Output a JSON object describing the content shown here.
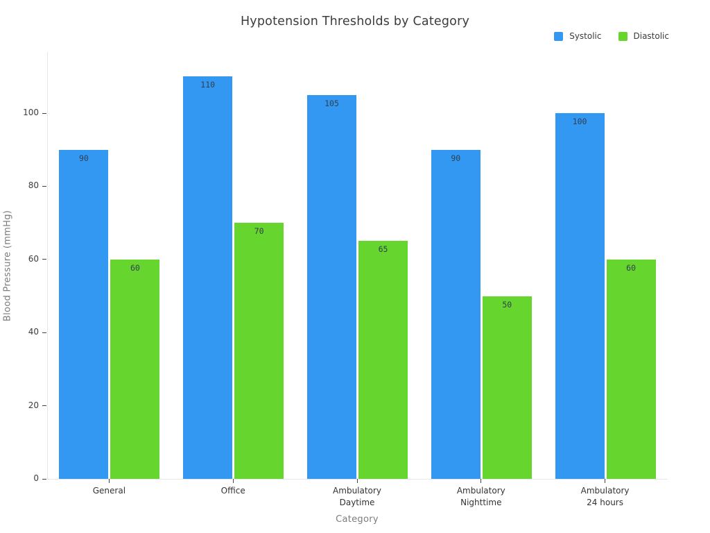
{
  "chart_data": {
    "type": "bar",
    "title": "Hypotension Thresholds by Category",
    "xlabel": "Category",
    "ylabel": "Blood Pressure (mmHg)",
    "categories": [
      "General",
      "Office",
      "Ambulatory\nDaytime",
      "Ambulatory\nNighttime",
      "Ambulatory\n24 hours"
    ],
    "series": [
      {
        "name": "Systolic",
        "color": "#3398f2",
        "values": [
          90,
          110,
          105,
          90,
          100
        ]
      },
      {
        "name": "Diastolic",
        "color": "#66d62e",
        "values": [
          60,
          70,
          65,
          50,
          60
        ]
      }
    ],
    "yticks": [
      0,
      20,
      40,
      60,
      80,
      100
    ],
    "ylim": [
      0,
      116.7
    ],
    "grid": false,
    "legend_position": "top-right",
    "bar_labels": true
  }
}
